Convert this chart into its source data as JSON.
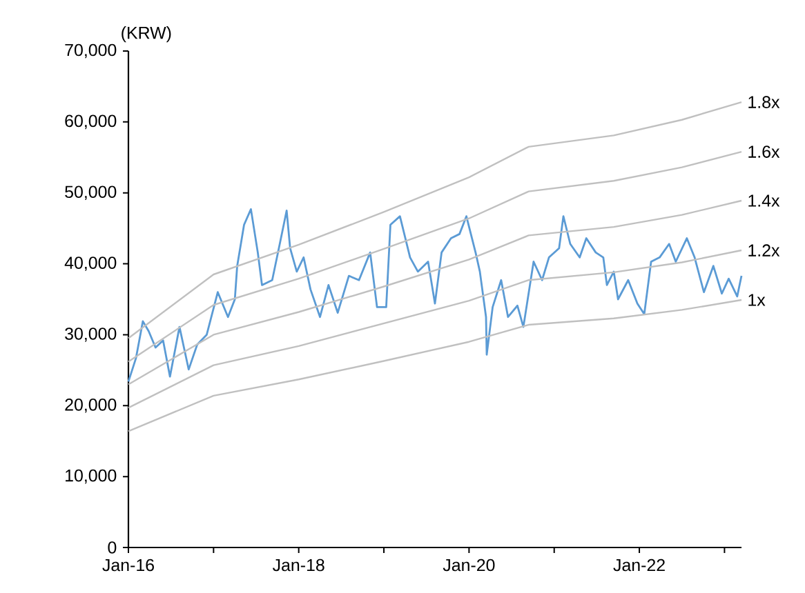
{
  "chart_data": {
    "type": "line",
    "ylabel": "(KRW)",
    "xlim": [
      "2016-01-01",
      "2023-03-13"
    ],
    "ylim": [
      0,
      70000
    ],
    "xticks": [
      {
        "value": "2016-01",
        "label": "Jan-16"
      },
      {
        "value": "2017-01",
        "label": null
      },
      {
        "value": "2018-01",
        "label": "Jan-18"
      },
      {
        "value": "2019-01",
        "label": null
      },
      {
        "value": "2020-01",
        "label": "Jan-20"
      },
      {
        "value": "2021-01",
        "label": null
      },
      {
        "value": "2022-01",
        "label": "Jan-22"
      },
      {
        "value": "2023-01",
        "label": null
      }
    ],
    "yticks": [
      {
        "value": 0,
        "label": "0"
      },
      {
        "value": 10000,
        "label": "10,000"
      },
      {
        "value": 20000,
        "label": "20,000"
      },
      {
        "value": 30000,
        "label": "30,000"
      },
      {
        "value": 40000,
        "label": "40,000"
      },
      {
        "value": 50000,
        "label": "50,000"
      },
      {
        "value": 60000,
        "label": "60,000"
      },
      {
        "value": 70000,
        "label": "70,000"
      }
    ],
    "grid": false,
    "legend": false,
    "marker": "none",
    "line_style": "solid",
    "series": [
      {
        "color": "#5b9bd5",
        "x": [
          "2016-01-01",
          "2016-02-03",
          "2016-03-02",
          "2016-03-27",
          "2016-04-26",
          "2016-05-28",
          "2016-06-27",
          "2016-08-07",
          "2016-09-16",
          "2016-10-22",
          "2016-12-02",
          "2017-01-19",
          "2017-03-02",
          "2017-04-01",
          "2017-04-11",
          "2017-05-10",
          "2017-06-09",
          "2017-07-08",
          "2017-07-26",
          "2017-09-09",
          "2017-10-11",
          "2017-11-10",
          "2017-11-25",
          "2017-12-23",
          "2018-01-22",
          "2018-02-21",
          "2018-04-01",
          "2018-05-07",
          "2018-06-16",
          "2018-08-03",
          "2018-09-16",
          "2018-11-03",
          "2018-12-02",
          "2019-01-11",
          "2019-01-29",
          "2019-03-09",
          "2019-04-22",
          "2019-05-25",
          "2019-07-08",
          "2019-08-07",
          "2019-09-05",
          "2019-10-15",
          "2019-11-21",
          "2019-12-20",
          "2020-01-29",
          "2020-02-17",
          "2020-03-13",
          "2020-03-16",
          "2020-04-11",
          "2020-05-17",
          "2020-06-16",
          "2020-07-26",
          "2020-08-21",
          "2020-10-04",
          "2020-11-10",
          "2020-12-09",
          "2021-01-22",
          "2021-02-10",
          "2021-03-09",
          "2021-04-19",
          "2021-05-17",
          "2021-06-27",
          "2021-07-29",
          "2021-08-14",
          "2021-09-13",
          "2021-10-01",
          "2021-11-14",
          "2021-12-23",
          "2022-01-22",
          "2022-02-21",
          "2022-03-27",
          "2022-05-07",
          "2022-06-05",
          "2022-07-22",
          "2022-08-25",
          "2022-10-04",
          "2022-11-14",
          "2022-12-20",
          "2023-01-19",
          "2023-02-25",
          "2023-03-13"
        ],
        "values": [
          23400,
          26700,
          31900,
          30500,
          28200,
          29200,
          24100,
          31100,
          25100,
          28600,
          30000,
          36000,
          32500,
          35000,
          39700,
          45500,
          47700,
          41600,
          37000,
          37700,
          42800,
          47500,
          42200,
          38900,
          40900,
          36400,
          32500,
          37000,
          33100,
          38300,
          37700,
          41600,
          33900,
          33900,
          45500,
          46700,
          40900,
          38900,
          40300,
          34400,
          41600,
          43600,
          44200,
          46700,
          41600,
          38900,
          32500,
          27200,
          33900,
          37700,
          32500,
          34100,
          31100,
          40300,
          37700,
          40900,
          42200,
          46700,
          42800,
          40900,
          43600,
          41600,
          40900,
          37000,
          38900,
          35000,
          37700,
          34400,
          32900,
          40300,
          40900,
          42800,
          40300,
          43600,
          40900,
          36000,
          39700,
          35800,
          37900,
          35400,
          38300
        ]
      },
      {
        "name": "1.8x",
        "color": "#c0c0c0",
        "x": [
          "2016-01-01",
          "2017-01-01",
          "2018-01-01",
          "2019-01-01",
          "2020-01-01",
          "2020-09-13",
          "2021-09-13",
          "2022-07-01",
          "2023-03-13"
        ],
        "values": [
          29500,
          38500,
          42700,
          47300,
          52200,
          56500,
          58100,
          60300,
          62800
        ]
      },
      {
        "name": "1.6x",
        "color": "#c0c0c0",
        "x": [
          "2016-01-01",
          "2017-01-01",
          "2018-01-01",
          "2019-01-01",
          "2020-01-01",
          "2020-09-13",
          "2021-09-13",
          "2022-07-01",
          "2023-03-13"
        ],
        "values": [
          26200,
          34200,
          37900,
          42100,
          46400,
          50200,
          51700,
          53600,
          55800
        ]
      },
      {
        "name": "1.4x",
        "color": "#c0c0c0",
        "x": [
          "2016-01-01",
          "2017-01-01",
          "2018-01-01",
          "2019-01-01",
          "2020-01-01",
          "2020-09-13",
          "2021-09-13",
          "2022-07-01",
          "2023-03-13"
        ],
        "values": [
          23000,
          30000,
          33200,
          36800,
          40600,
          44000,
          45200,
          46900,
          48900
        ]
      },
      {
        "name": "1.2x",
        "color": "#c0c0c0",
        "x": [
          "2016-01-01",
          "2017-01-01",
          "2018-01-01",
          "2019-01-01",
          "2020-01-01",
          "2020-09-13",
          "2021-09-13",
          "2022-07-01",
          "2023-03-13"
        ],
        "values": [
          19700,
          25700,
          28400,
          31600,
          34800,
          37700,
          38800,
          40200,
          41900
        ]
      },
      {
        "name": "1x",
        "color": "#c0c0c0",
        "x": [
          "2016-01-01",
          "2017-01-01",
          "2018-01-01",
          "2019-01-01",
          "2020-01-01",
          "2020-09-13",
          "2021-09-13",
          "2022-07-01",
          "2023-03-13"
        ],
        "values": [
          16400,
          21400,
          23700,
          26300,
          29000,
          31400,
          32300,
          33500,
          34900
        ]
      }
    ]
  }
}
